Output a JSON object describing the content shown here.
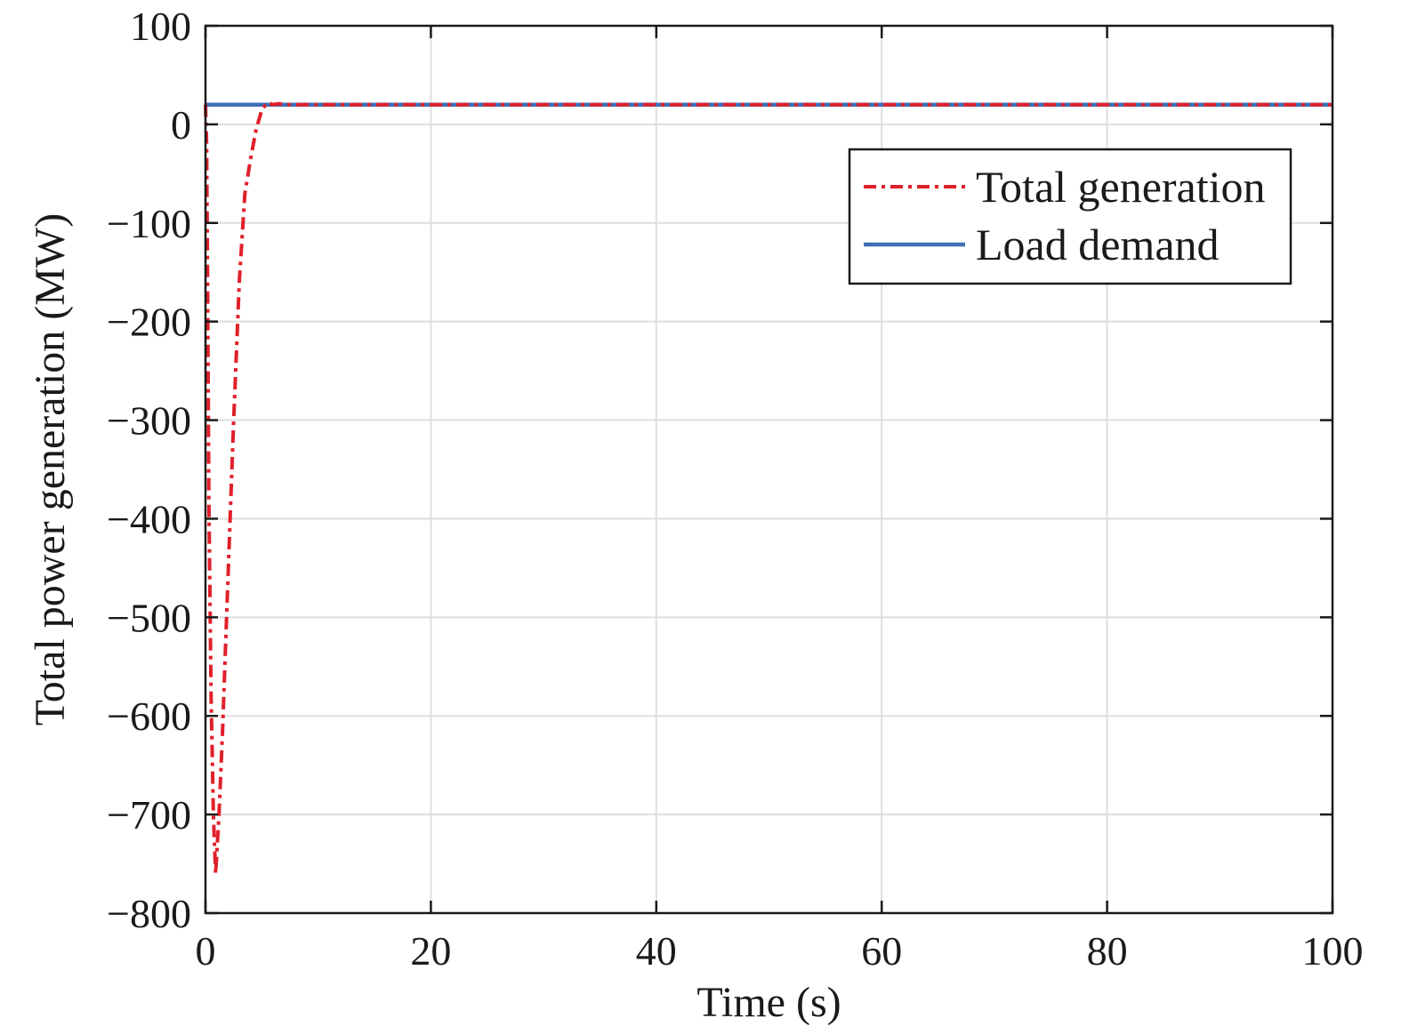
{
  "chart_data": {
    "type": "line",
    "xlabel": "Time (s)",
    "ylabel": "Total power generation (MW)",
    "xlim": [
      0,
      100
    ],
    "ylim": [
      -800,
      100
    ],
    "xticks": [
      0,
      20,
      40,
      60,
      80,
      100
    ],
    "yticks": [
      100,
      0,
      -100,
      -200,
      -300,
      -400,
      -500,
      -600,
      -700,
      -800
    ],
    "xtick_labels": [
      "0",
      "20",
      "40",
      "60",
      "80",
      "100"
    ],
    "ytick_labels": [
      "100",
      "0",
      "−100",
      "−200",
      "−300",
      "−400",
      "−500",
      "−600",
      "−700",
      "−800"
    ],
    "grid": true,
    "legend_position": "upper-right",
    "series": [
      {
        "name": "Total generation",
        "color": "#e0202a",
        "style": "dash-dot",
        "x": [
          0,
          0.1,
          0.2,
          0.3,
          0.5,
          0.7,
          0.9,
          1.0,
          1.2,
          1.5,
          2.0,
          2.5,
          3.0,
          3.5,
          4.0,
          4.5,
          5.0,
          5.5,
          6.0,
          6.5,
          7.0,
          100
        ],
        "y": [
          20,
          -20,
          -180,
          -380,
          -580,
          -700,
          -760,
          -740,
          -700,
          -620,
          -460,
          -300,
          -160,
          -70,
          -35,
          -5,
          15,
          22,
          20,
          21,
          20,
          20
        ]
      },
      {
        "name": "Load demand",
        "color": "#3e6fb7",
        "style": "solid",
        "x": [
          0,
          100
        ],
        "y": [
          20,
          20
        ]
      }
    ]
  }
}
